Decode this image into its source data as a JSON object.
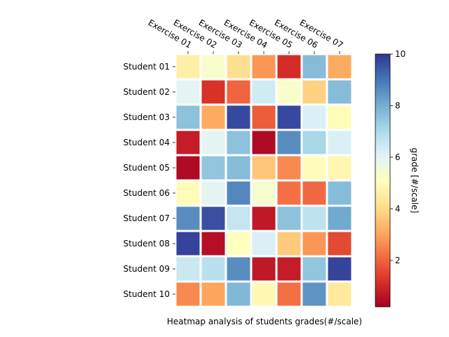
{
  "chart_data": {
    "type": "heatmap",
    "title": "",
    "xlabel": "Heatmap analysis of students grades(#/scale)",
    "ylabel": "",
    "x_categories": [
      "Exercise 01",
      "Exercise 02",
      "Exercise 03",
      "Exercise 04",
      "Exercise 05",
      "Exercise 06",
      "Exercise 07"
    ],
    "y_categories": [
      "Student 01",
      "Student 02",
      "Student 03",
      "Student 04",
      "Student 05",
      "Student 06",
      "Student 07",
      "Student 08",
      "Student 09",
      "Student 10"
    ],
    "values": [
      [
        4.6,
        5.3,
        4.1,
        2.8,
        1.1,
        7.7,
        3.1
      ],
      [
        6.0,
        1.2,
        2.0,
        6.4,
        5.3,
        3.8,
        7.7
      ],
      [
        7.6,
        3.1,
        9.7,
        1.9,
        9.7,
        6.2,
        5.0
      ],
      [
        0.8,
        6.0,
        7.6,
        0.4,
        8.6,
        7.1,
        6.2
      ],
      [
        0.4,
        7.5,
        7.7,
        3.6,
        2.6,
        5.0,
        4.8
      ],
      [
        5.0,
        6.0,
        8.7,
        5.4,
        2.2,
        2.1,
        7.7
      ],
      [
        8.6,
        9.6,
        6.6,
        0.7,
        7.6,
        6.7,
        8.1
      ],
      [
        9.8,
        0.5,
        5.1,
        6.2,
        3.7,
        2.8,
        1.6
      ],
      [
        6.5,
        6.8,
        8.6,
        0.7,
        0.8,
        7.5,
        9.8
      ],
      [
        2.6,
        3.0,
        7.8,
        4.9,
        2.2,
        8.5,
        4.4
      ]
    ],
    "colormap": "RdYlBu",
    "colorbar": {
      "label": "grade [#/scale]",
      "range": [
        0.2,
        10
      ],
      "ticks": [
        2,
        4,
        6,
        8,
        10
      ]
    },
    "grid": false,
    "legend": "colorbar-right"
  }
}
